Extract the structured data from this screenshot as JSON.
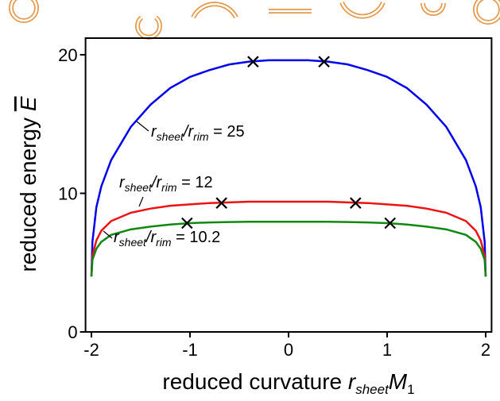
{
  "chart_data": {
    "type": "line",
    "x": [
      -2,
      -1.99,
      -1.95,
      -1.9,
      -1.8,
      -1.6,
      -1.4,
      -1.2,
      -1,
      -0.8,
      -0.6,
      -0.4,
      -0.2,
      0,
      0.2,
      0.4,
      0.6,
      0.8,
      1,
      1.2,
      1.4,
      1.6,
      1.8,
      1.9,
      1.95,
      1.99,
      2
    ],
    "series": [
      {
        "color": "#0000ee",
        "values": [
          4,
          6.5,
          9,
          10.5,
          12.4,
          14.8,
          16.4,
          17.6,
          18.4,
          18.9,
          19.3,
          19.5,
          19.6,
          19.6,
          19.6,
          19.5,
          19.3,
          18.9,
          18.4,
          17.6,
          16.4,
          14.8,
          12.4,
          10.5,
          9,
          6.5,
          4
        ]
      },
      {
        "color": "#ee1111",
        "values": [
          4,
          5.5,
          6.6,
          7.3,
          8,
          8.6,
          8.9,
          9.1,
          9.2,
          9.3,
          9.35,
          9.4,
          9.4,
          9.4,
          9.4,
          9.4,
          9.35,
          9.3,
          9.2,
          9.1,
          8.9,
          8.6,
          8,
          7.3,
          6.6,
          5.5,
          4
        ]
      },
      {
        "color": "#118811",
        "values": [
          4,
          5.2,
          6,
          6.5,
          7,
          7.4,
          7.6,
          7.75,
          7.85,
          7.9,
          7.93,
          7.95,
          7.95,
          7.95,
          7.95,
          7.95,
          7.93,
          7.9,
          7.85,
          7.75,
          7.6,
          7.4,
          7,
          6.5,
          6,
          5.2,
          4
        ]
      }
    ],
    "markers": {
      "x": [
        -0.36,
        0.36,
        -0.68,
        0.68,
        -1.03,
        1.03
      ],
      "y": [
        19.5,
        19.5,
        9.3,
        9.3,
        7.85,
        7.85
      ]
    },
    "annotations": [
      {
        "parts": [
          "r",
          "sheet",
          "/r",
          "rim",
          " = 25"
        ]
      },
      {
        "parts": [
          "r",
          "sheet",
          "/r",
          "rim",
          " = 12"
        ]
      },
      {
        "parts": [
          "r",
          "sheet",
          "/r",
          "rim",
          " = 10.2"
        ]
      }
    ],
    "x_label": {
      "parts": [
        "reduced curvature ",
        "r",
        "sheet",
        "M",
        "1"
      ]
    },
    "y_label": {
      "parts": [
        "reduced energy ",
        "E"
      ]
    },
    "xlim": [
      -2.06,
      2.06
    ],
    "ylim": [
      0,
      21.2
    ],
    "xticks": [
      -2,
      -1,
      0,
      1,
      2
    ],
    "yticks": [
      0,
      10,
      20
    ]
  }
}
